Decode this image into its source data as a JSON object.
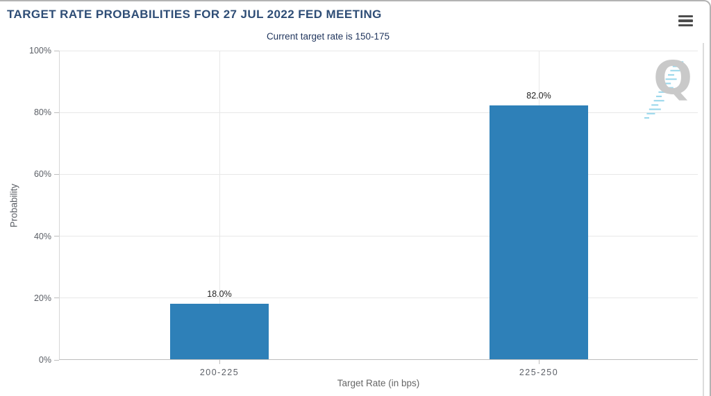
{
  "header": {
    "title": "TARGET RATE PROBABILITIES FOR 27 JUL 2022 FED MEETING",
    "menu_icon": "hamburger-icon"
  },
  "chart_data": {
    "type": "bar",
    "title": "TARGET RATE PROBABILITIES FOR 27 JUL 2022 FED MEETING",
    "subtitle": "Current target rate is 150-175",
    "categories": [
      "200-225",
      "225-250"
    ],
    "values": [
      18.0,
      82.0
    ],
    "value_labels": [
      "18.0%",
      "82.0%"
    ],
    "xlabel": "Target Rate (in bps)",
    "ylabel": "Probability",
    "ylim": [
      0,
      100
    ],
    "yticks": [
      0,
      20,
      40,
      60,
      80,
      100
    ],
    "ytick_labels": [
      "0%",
      "20%",
      "40%",
      "60%",
      "80%",
      "100%"
    ],
    "grid": true,
    "legend": false,
    "bar_color": "#2e80b8"
  },
  "watermark": {
    "letter": "Q"
  },
  "colors": {
    "bar": "#2e80b8",
    "title_text": "#2e4d76",
    "subtitle_text": "#21365e",
    "watermark_dashes": "#9ed9ec"
  }
}
